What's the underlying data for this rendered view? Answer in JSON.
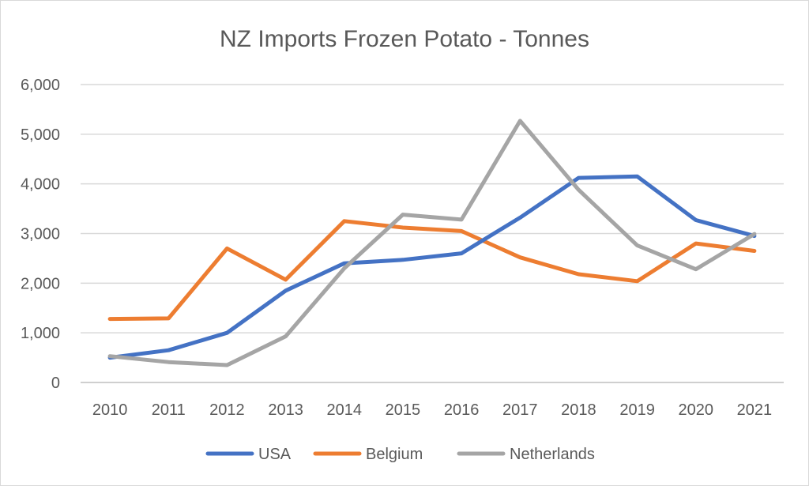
{
  "chart_data": {
    "type": "line",
    "title": "NZ Imports Frozen Potato - Tonnes",
    "xlabel": "",
    "ylabel": "",
    "categories": [
      "2010",
      "2011",
      "2012",
      "2013",
      "2014",
      "2015",
      "2016",
      "2017",
      "2018",
      "2019",
      "2020",
      "2021"
    ],
    "ylim": [
      0,
      6000
    ],
    "yticks": [
      0,
      1000,
      2000,
      3000,
      4000,
      5000,
      6000
    ],
    "ytick_labels": [
      "0",
      "1,000",
      "2,000",
      "3,000",
      "4,000",
      "5,000",
      "6,000"
    ],
    "grid": "horizontal",
    "legend_position": "bottom",
    "series": [
      {
        "name": "USA",
        "color": "#4472c4",
        "values": [
          500,
          650,
          1000,
          1850,
          2400,
          2470,
          2600,
          3320,
          4120,
          4150,
          3270,
          2950
        ]
      },
      {
        "name": "Belgium",
        "color": "#ed7d31",
        "values": [
          1280,
          1290,
          2700,
          2070,
          3250,
          3120,
          3050,
          2520,
          2180,
          2040,
          2800,
          2650
        ]
      },
      {
        "name": "Netherlands",
        "color": "#a5a5a5",
        "values": [
          530,
          410,
          350,
          930,
          2300,
          3380,
          3280,
          5270,
          3880,
          2760,
          2280,
          2990
        ]
      }
    ]
  }
}
